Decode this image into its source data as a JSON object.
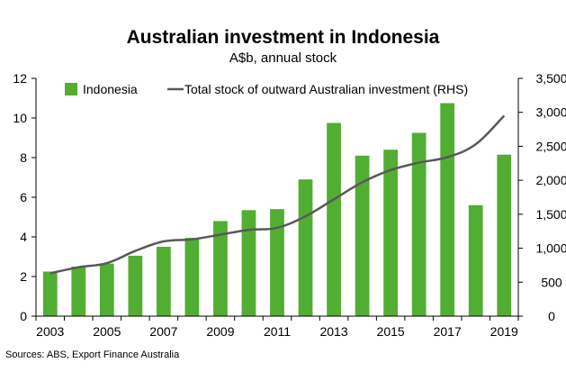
{
  "chart_data": {
    "type": "bar",
    "title": "Australian investment in Indonesia",
    "subtitle": "A$b, annual stock",
    "source": "Sources: ABS, Export Finance Australia",
    "x": [
      2003,
      2004,
      2005,
      2006,
      2007,
      2008,
      2009,
      2010,
      2011,
      2012,
      2013,
      2014,
      2015,
      2016,
      2017,
      2018,
      2019
    ],
    "x_tick_labels": [
      "2003",
      "2005",
      "2007",
      "2009",
      "2011",
      "2013",
      "2015",
      "2017",
      "2019"
    ],
    "series": [
      {
        "name": "Indonesia",
        "type": "bar",
        "axis": "left",
        "color": "#52ae32",
        "values": [
          2.25,
          2.5,
          2.65,
          3.05,
          3.5,
          3.95,
          4.8,
          5.35,
          5.4,
          6.9,
          9.75,
          8.1,
          8.4,
          9.25,
          10.75,
          5.6,
          8.15
        ]
      },
      {
        "name": "Total stock of outward Australian investment (RHS)",
        "type": "line",
        "axis": "right",
        "color": "#595959",
        "values": [
          630,
          720,
          780,
          960,
          1100,
          1130,
          1200,
          1270,
          1300,
          1470,
          1720,
          1970,
          2150,
          2260,
          2340,
          2530,
          2950
        ]
      }
    ],
    "y_left": {
      "min": 0,
      "max": 12,
      "ticks": [
        "0",
        "2",
        "4",
        "6",
        "8",
        "10",
        "12"
      ]
    },
    "y_right": {
      "min": 0,
      "max": 3500,
      "ticks": [
        "0",
        "500",
        "1,000",
        "1,500",
        "2,000",
        "2,500",
        "3,000",
        "3,500"
      ]
    },
    "grid": false,
    "legend_position": "top-left"
  }
}
